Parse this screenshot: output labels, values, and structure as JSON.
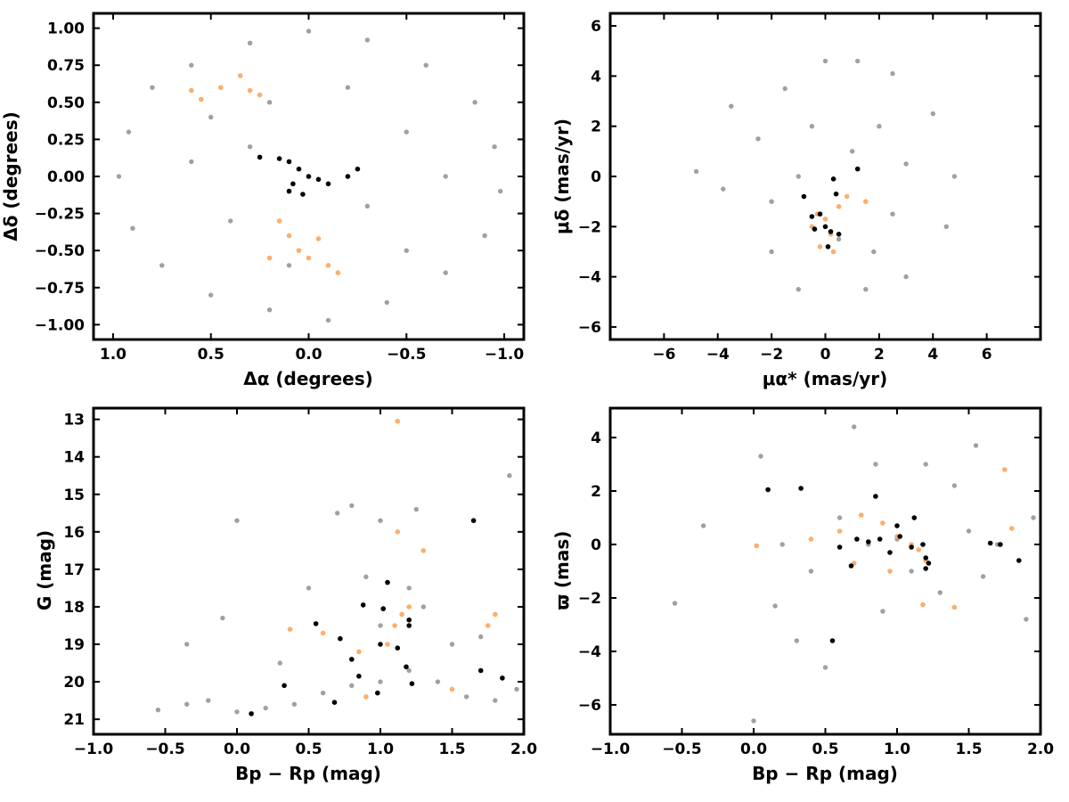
{
  "colors": {
    "field": "#a0a0a0",
    "orange": "#fdae6b",
    "black": "#000000"
  },
  "chart_data": [
    {
      "type": "scatter",
      "xlabel": "Δα (degrees)",
      "ylabel": "Δδ (degrees)",
      "xlim": [
        1.1,
        -1.1
      ],
      "ylim": [
        -1.1,
        1.1
      ],
      "xticks": [
        1.0,
        0.5,
        0.0,
        -0.5,
        -1.0
      ],
      "xtick_labels": [
        "1.0",
        "0.5",
        "0.0",
        "−0.5",
        "−1.0"
      ],
      "yticks": [
        -1.0,
        -0.75,
        -0.5,
        -0.25,
        0.0,
        0.25,
        0.5,
        0.75,
        1.0
      ],
      "ytick_labels": [
        "−1.00",
        "−0.75",
        "−0.50",
        "−0.25",
        "0.00",
        "0.25",
        "0.50",
        "0.75",
        "1.00"
      ],
      "series": [
        {
          "color": "#a0a0a0",
          "points": [
            [
              0.8,
              0.6
            ],
            [
              0.6,
              0.75
            ],
            [
              0.3,
              0.9
            ],
            [
              0.0,
              0.98
            ],
            [
              -0.3,
              0.92
            ],
            [
              -0.6,
              0.75
            ],
            [
              -0.85,
              0.5
            ],
            [
              -0.95,
              0.2
            ],
            [
              -0.98,
              -0.1
            ],
            [
              -0.9,
              -0.4
            ],
            [
              -0.7,
              -0.65
            ],
            [
              -0.4,
              -0.85
            ],
            [
              -0.1,
              -0.97
            ],
            [
              0.2,
              -0.9
            ],
            [
              0.5,
              -0.8
            ],
            [
              0.75,
              -0.6
            ],
            [
              0.9,
              -0.35
            ],
            [
              0.97,
              0.0
            ],
            [
              0.92,
              0.3
            ],
            [
              0.5,
              0.4
            ],
            [
              0.2,
              0.5
            ],
            [
              -0.2,
              0.6
            ],
            [
              -0.5,
              0.3
            ],
            [
              -0.3,
              -0.2
            ],
            [
              0.4,
              -0.3
            ],
            [
              0.6,
              0.1
            ],
            [
              -0.7,
              0.0
            ],
            [
              0.1,
              -0.6
            ],
            [
              -0.5,
              -0.5
            ],
            [
              0.3,
              0.2
            ]
          ]
        },
        {
          "color": "#fdae6b",
          "points": [
            [
              0.6,
              0.58
            ],
            [
              0.55,
              0.52
            ],
            [
              0.45,
              0.6
            ],
            [
              0.35,
              0.68
            ],
            [
              0.3,
              0.58
            ],
            [
              0.25,
              0.55
            ],
            [
              0.15,
              -0.3
            ],
            [
              0.1,
              -0.4
            ],
            [
              0.05,
              -0.5
            ],
            [
              0.0,
              -0.55
            ],
            [
              -0.1,
              -0.6
            ],
            [
              -0.15,
              -0.65
            ],
            [
              0.2,
              -0.55
            ],
            [
              -0.05,
              -0.42
            ]
          ]
        },
        {
          "color": "#000000",
          "points": [
            [
              0.25,
              0.13
            ],
            [
              0.15,
              0.12
            ],
            [
              0.1,
              0.1
            ],
            [
              0.05,
              0.05
            ],
            [
              0.0,
              0.0
            ],
            [
              -0.05,
              -0.02
            ],
            [
              -0.1,
              -0.05
            ],
            [
              -0.2,
              0.0
            ],
            [
              -0.25,
              0.05
            ],
            [
              0.08,
              -0.05
            ],
            [
              0.03,
              -0.12
            ],
            [
              0.1,
              -0.1
            ]
          ]
        }
      ]
    },
    {
      "type": "scatter",
      "xlabel": "μα* (mas/yr)",
      "ylabel": "μδ (mas/yr)",
      "xlim": [
        -8.0,
        8.0
      ],
      "ylim": [
        -6.5,
        6.5
      ],
      "xticks": [
        -6,
        -4,
        -2,
        0,
        2,
        4,
        6
      ],
      "xtick_labels": [
        "−6",
        "−4",
        "−2",
        "0",
        "2",
        "4",
        "6"
      ],
      "yticks": [
        -6,
        -4,
        -2,
        0,
        2,
        4,
        6
      ],
      "ytick_labels": [
        "−6",
        "−4",
        "−2",
        "0",
        "2",
        "4",
        "6"
      ],
      "series": [
        {
          "color": "#a0a0a0",
          "points": [
            [
              -4.8,
              0.2
            ],
            [
              -3.8,
              -0.5
            ],
            [
              -3.5,
              2.8
            ],
            [
              -2.5,
              1.5
            ],
            [
              -2,
              -3
            ],
            [
              -1.5,
              3.5
            ],
            [
              -1,
              -4.5
            ],
            [
              0,
              4.6
            ],
            [
              1.2,
              4.6
            ],
            [
              1.5,
              -4.5
            ],
            [
              2.5,
              4.1
            ],
            [
              3,
              -4
            ],
            [
              4,
              2.5
            ],
            [
              4.8,
              0
            ],
            [
              4.5,
              -2
            ],
            [
              2.5,
              -1.5
            ],
            [
              1,
              1
            ],
            [
              -1,
              0
            ],
            [
              0.5,
              -2.5
            ],
            [
              3,
              0.5
            ],
            [
              -0.5,
              2
            ],
            [
              2,
              2
            ],
            [
              -2,
              -1
            ],
            [
              1.8,
              -3
            ]
          ]
        },
        {
          "color": "#fdae6b",
          "points": [
            [
              -0.5,
              -2.0
            ],
            [
              -0.3,
              -1.5
            ],
            [
              0,
              -1.7
            ],
            [
              0.2,
              -2.3
            ],
            [
              0.5,
              -1.2
            ],
            [
              0.8,
              -0.8
            ],
            [
              1.5,
              -1.0
            ],
            [
              -0.2,
              -2.8
            ],
            [
              0.3,
              -3.0
            ]
          ]
        },
        {
          "color": "#000000",
          "points": [
            [
              -0.8,
              -0.8
            ],
            [
              -0.5,
              -1.6
            ],
            [
              -0.2,
              -1.5
            ],
            [
              0,
              -2.0
            ],
            [
              0.2,
              -2.2
            ],
            [
              0.4,
              -0.7
            ],
            [
              0.3,
              -0.1
            ],
            [
              1.2,
              0.3
            ],
            [
              0.5,
              -2.3
            ],
            [
              0.1,
              -2.8
            ],
            [
              -0.4,
              -2.1
            ]
          ]
        }
      ]
    },
    {
      "type": "scatter",
      "xlabel": "Bp − Rp (mag)",
      "ylabel": "G (mag)",
      "xlim": [
        -1.0,
        2.0
      ],
      "ylim": [
        21.4,
        12.7
      ],
      "xticks": [
        -1.0,
        -0.5,
        0.0,
        0.5,
        1.0,
        1.5,
        2.0
      ],
      "xtick_labels": [
        "−1.0",
        "−0.5",
        "0.0",
        "0.5",
        "1.0",
        "1.5",
        "2.0"
      ],
      "yticks": [
        21,
        20,
        19,
        18,
        17,
        16,
        15,
        14,
        13
      ],
      "ytick_labels": [
        "21",
        "20",
        "19",
        "18",
        "17",
        "16",
        "15",
        "14",
        "13"
      ],
      "series": [
        {
          "color": "#a0a0a0",
          "points": [
            [
              -0.55,
              20.75
            ],
            [
              -0.35,
              20.6
            ],
            [
              -0.35,
              19.0
            ],
            [
              -0.2,
              20.5
            ],
            [
              -0.1,
              18.3
            ],
            [
              0.0,
              20.8
            ],
            [
              0.0,
              15.7
            ],
            [
              0.2,
              20.7
            ],
            [
              0.4,
              20.6
            ],
            [
              0.6,
              20.3
            ],
            [
              0.8,
              20.1
            ],
            [
              1.0,
              20.0
            ],
            [
              1.2,
              19.7
            ],
            [
              1.4,
              20.0
            ],
            [
              1.6,
              20.4
            ],
            [
              1.8,
              20.5
            ],
            [
              1.95,
              20.2
            ],
            [
              0.5,
              17.5
            ],
            [
              0.9,
              17.2
            ],
            [
              1.2,
              17.5
            ],
            [
              1.0,
              18.5
            ],
            [
              1.3,
              18.0
            ],
            [
              0.7,
              15.5
            ],
            [
              0.8,
              15.3
            ],
            [
              1.0,
              15.7
            ],
            [
              1.25,
              15.4
            ],
            [
              1.9,
              14.5
            ],
            [
              1.5,
              19.0
            ],
            [
              1.7,
              18.8
            ],
            [
              0.3,
              19.5
            ]
          ]
        },
        {
          "color": "#fdae6b",
          "points": [
            [
              0.37,
              18.6
            ],
            [
              0.6,
              18.7
            ],
            [
              0.85,
              19.2
            ],
            [
              1.05,
              19.0
            ],
            [
              1.1,
              18.5
            ],
            [
              1.15,
              18.2
            ],
            [
              1.2,
              18.0
            ],
            [
              1.3,
              16.5
            ],
            [
              1.12,
              16.0
            ],
            [
              1.12,
              13.05
            ],
            [
              1.75,
              18.5
            ],
            [
              1.8,
              18.2
            ],
            [
              1.5,
              20.2
            ],
            [
              0.9,
              20.4
            ]
          ]
        },
        {
          "color": "#000000",
          "points": [
            [
              0.1,
              20.85
            ],
            [
              0.33,
              20.1
            ],
            [
              0.55,
              18.45
            ],
            [
              0.68,
              20.55
            ],
            [
              0.72,
              18.85
            ],
            [
              0.8,
              19.4
            ],
            [
              0.85,
              19.85
            ],
            [
              0.88,
              17.95
            ],
            [
              0.98,
              20.3
            ],
            [
              1.0,
              19.0
            ],
            [
              1.02,
              18.05
            ],
            [
              1.05,
              17.35
            ],
            [
              1.12,
              19.1
            ],
            [
              1.18,
              19.6
            ],
            [
              1.2,
              18.5
            ],
            [
              1.2,
              18.35
            ],
            [
              1.22,
              20.05
            ],
            [
              1.65,
              15.7
            ],
            [
              1.7,
              19.7
            ],
            [
              1.85,
              19.9
            ]
          ]
        }
      ]
    },
    {
      "type": "scatter",
      "xlabel": "Bp − Rp (mag)",
      "ylabel": "ϖ (mas)",
      "xlim": [
        -1.0,
        2.0
      ],
      "ylim": [
        -7.1,
        5.1
      ],
      "xticks": [
        -1.0,
        -0.5,
        0.0,
        0.5,
        1.0,
        1.5,
        2.0
      ],
      "xtick_labels": [
        "−1.0",
        "−0.5",
        "0.0",
        "0.5",
        "1.0",
        "1.5",
        "2.0"
      ],
      "yticks": [
        -6,
        -4,
        -2,
        0,
        2,
        4
      ],
      "ytick_labels": [
        "−6",
        "−4",
        "−2",
        "0",
        "2",
        "4"
      ],
      "series": [
        {
          "color": "#a0a0a0",
          "points": [
            [
              -0.55,
              -2.2
            ],
            [
              -0.35,
              0.7
            ],
            [
              0.0,
              -6.6
            ],
            [
              0.05,
              3.3
            ],
            [
              0.2,
              0.0
            ],
            [
              0.3,
              -3.6
            ],
            [
              0.5,
              -4.6
            ],
            [
              0.7,
              4.4
            ],
            [
              0.8,
              0.0
            ],
            [
              0.9,
              -2.5
            ],
            [
              1.0,
              0.2
            ],
            [
              1.1,
              -1.0
            ],
            [
              1.2,
              3.0
            ],
            [
              1.3,
              -1.8
            ],
            [
              1.5,
              0.5
            ],
            [
              1.7,
              0.0
            ],
            [
              1.9,
              -2.8
            ],
            [
              1.95,
              1.0
            ],
            [
              0.6,
              1.0
            ],
            [
              0.4,
              -1.0
            ],
            [
              1.55,
              3.7
            ],
            [
              0.15,
              -2.3
            ],
            [
              0.85,
              3.0
            ],
            [
              1.4,
              2.2
            ],
            [
              1.6,
              -1.2
            ]
          ]
        },
        {
          "color": "#fdae6b",
          "points": [
            [
              0.02,
              -0.05
            ],
            [
              0.4,
              0.2
            ],
            [
              0.6,
              0.5
            ],
            [
              0.75,
              1.1
            ],
            [
              0.9,
              0.8
            ],
            [
              1.0,
              0.3
            ],
            [
              1.1,
              0.0
            ],
            [
              1.15,
              -0.2
            ],
            [
              1.2,
              -0.6
            ],
            [
              1.18,
              -2.25
            ],
            [
              1.4,
              -2.35
            ],
            [
              1.75,
              2.8
            ],
            [
              1.8,
              0.6
            ],
            [
              0.95,
              -1.0
            ],
            [
              0.7,
              -0.7
            ]
          ]
        },
        {
          "color": "#000000",
          "points": [
            [
              0.1,
              2.05
            ],
            [
              0.33,
              2.1
            ],
            [
              0.55,
              -3.6
            ],
            [
              0.6,
              -0.1
            ],
            [
              0.68,
              -0.8
            ],
            [
              0.72,
              0.2
            ],
            [
              0.8,
              0.1
            ],
            [
              0.85,
              1.8
            ],
            [
              0.88,
              0.2
            ],
            [
              0.95,
              -0.3
            ],
            [
              1.0,
              0.7
            ],
            [
              1.02,
              0.3
            ],
            [
              1.1,
              -0.1
            ],
            [
              1.12,
              1.0
            ],
            [
              1.18,
              0.0
            ],
            [
              1.2,
              -0.5
            ],
            [
              1.2,
              -0.9
            ],
            [
              1.22,
              -0.7
            ],
            [
              1.65,
              0.05
            ],
            [
              1.72,
              0.0
            ],
            [
              1.85,
              -0.6
            ]
          ]
        }
      ]
    }
  ]
}
